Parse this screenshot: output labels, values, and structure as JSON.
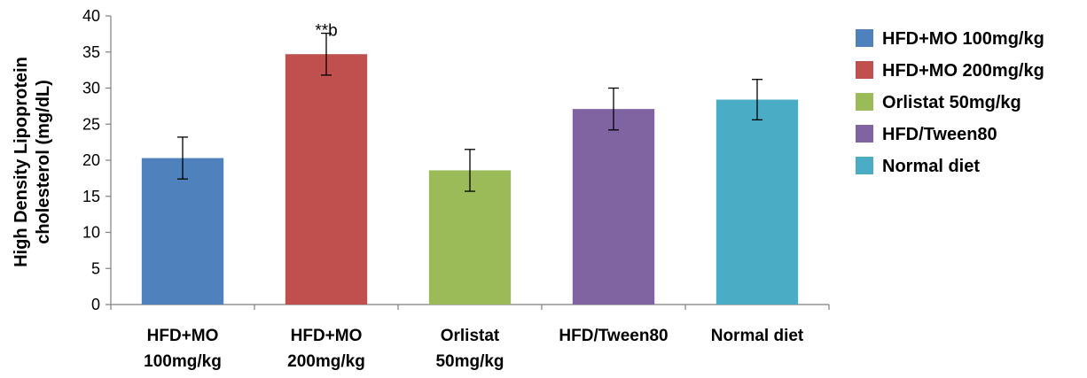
{
  "chart_data": {
    "type": "bar",
    "title": "",
    "xlabel": "",
    "ylabel_lines": [
      "High Density Lipoprotein",
      "cholesterol (mg/dL)"
    ],
    "ylim": [
      0,
      40
    ],
    "yticks": [
      0,
      5,
      10,
      15,
      20,
      25,
      30,
      35,
      40
    ],
    "categories": [
      [
        "HFD+MO",
        "100mg/kg"
      ],
      [
        "HFD+MO",
        "200mg/kg"
      ],
      [
        "Orlistat",
        "50mg/kg"
      ],
      [
        "HFD/Tween80"
      ],
      [
        "Normal diet"
      ]
    ],
    "values": [
      20.3,
      34.7,
      18.6,
      27.1,
      28.4
    ],
    "errors": [
      2.9,
      2.9,
      2.9,
      2.9,
      2.8
    ],
    "colors": [
      "#4f81bd",
      "#c0504d",
      "#9bbb59",
      "#8064a2",
      "#4bacc6"
    ],
    "annotations": [
      {
        "index": 1,
        "text": "**b"
      }
    ],
    "legend": {
      "placement": "right",
      "entries": [
        {
          "label": "HFD+MO 100mg/kg",
          "color": "#4f81bd"
        },
        {
          "label": "HFD+MO 200mg/kg",
          "color": "#c0504d"
        },
        {
          "label": "Orlistat 50mg/kg",
          "color": "#9bbb59"
        },
        {
          "label": "HFD/Tween80",
          "color": "#8064a2"
        },
        {
          "label": "Normal diet",
          "color": "#4bacc6"
        }
      ]
    },
    "grid": false
  }
}
